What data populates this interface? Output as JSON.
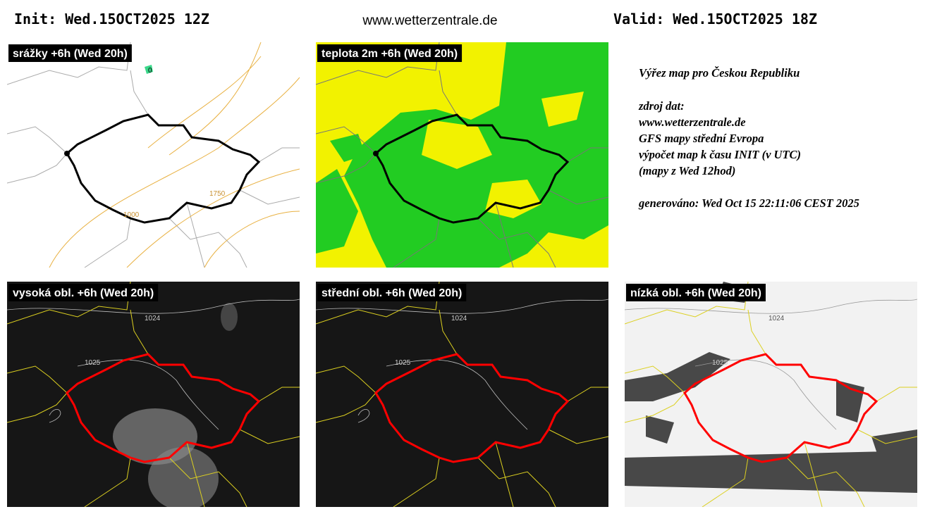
{
  "header": {
    "init": "Init: Wed.15OCT2025 12Z",
    "site": "www.wetterzentrale.de",
    "valid": "Valid: Wed.15OCT2025 18Z"
  },
  "panels": [
    {
      "title": "srážky +6h (Wed 20h)",
      "labels": [
        "0",
        "1750",
        "1000"
      ]
    },
    {
      "title": "teplota 2m +6h (Wed 20h)"
    },
    {
      "title": "vysoká obl. +6h (Wed 20h)",
      "labels": [
        "1024",
        "1025"
      ]
    },
    {
      "title": "střední obl. +6h (Wed 20h)",
      "labels": [
        "1024",
        "1025"
      ]
    },
    {
      "title": "nízká obl. +6h (Wed 20h)",
      "labels": [
        "1024",
        "1025"
      ]
    }
  ],
  "info": {
    "lines": [
      "Výřez map pro Českou Republiku",
      "zdroj dat:",
      "www.wetterzentrale.de",
      "GFS mapy střední Evropa",
      "výpočet map k času INIT (v UTC)",
      "(mapy z Wed 12hod)",
      "generováno: Wed Oct 15 22:11:06 CEST 2025"
    ]
  }
}
